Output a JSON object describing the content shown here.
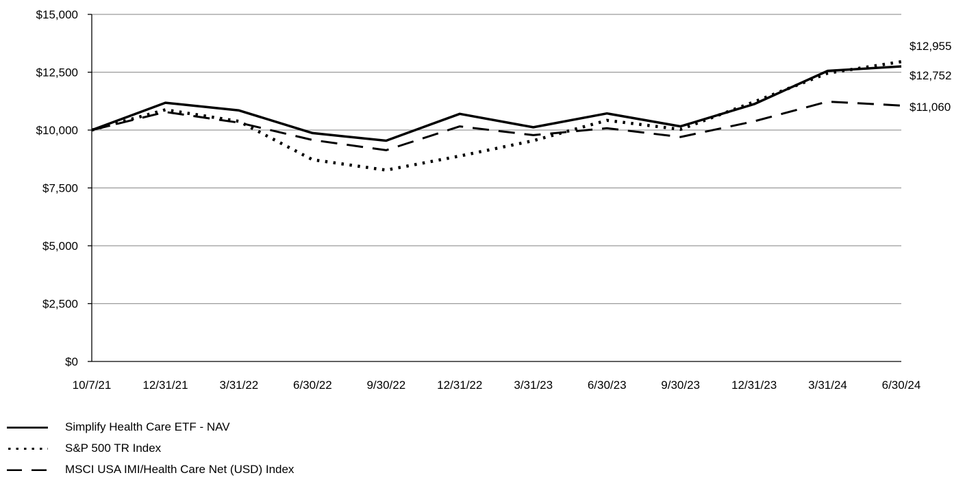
{
  "chart_data": {
    "type": "line",
    "x": [
      "10/7/21",
      "12/31/21",
      "3/31/22",
      "6/30/22",
      "9/30/22",
      "12/31/22",
      "3/31/23",
      "6/30/23",
      "9/30/23",
      "12/31/23",
      "3/31/24",
      "6/30/24"
    ],
    "ylim": [
      0,
      15000
    ],
    "yticks": [
      "$0",
      "$2,500",
      "$5,000",
      "$7,500",
      "$10,000",
      "$12,500",
      "$15,000"
    ],
    "ytick_values": [
      0,
      2500,
      5000,
      7500,
      10000,
      12500,
      15000
    ],
    "grid": "horizontal",
    "legend_position": "bottom-left",
    "series": [
      {
        "name": "Simplify Health Care ETF - NAV",
        "style": "solid",
        "values": [
          10000,
          11180,
          10850,
          9870,
          9540,
          10700,
          10120,
          10720,
          10160,
          11120,
          12560,
          12752
        ],
        "end_label": "$12,752"
      },
      {
        "name": "S&P 500 TR Index",
        "style": "dotted",
        "values": [
          10000,
          10880,
          10380,
          8720,
          8270,
          8880,
          9540,
          10420,
          10030,
          11220,
          12460,
          12955
        ],
        "end_label": "$12,955"
      },
      {
        "name": "MSCI USA IMI/Health Care Net (USD) Index",
        "style": "dashed",
        "values": [
          10000,
          10780,
          10320,
          9570,
          9130,
          10160,
          9780,
          10080,
          9700,
          10380,
          11230,
          11060
        ],
        "end_label": "$11,060"
      }
    ]
  }
}
